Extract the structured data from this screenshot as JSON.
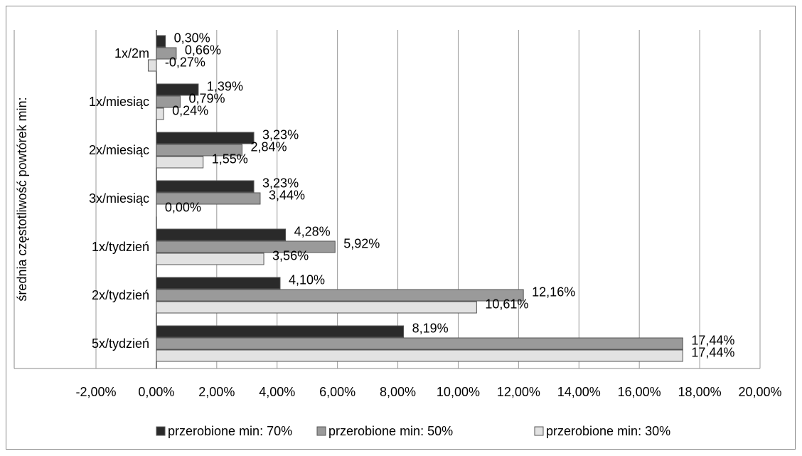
{
  "chart_data": {
    "type": "bar",
    "orientation": "horizontal",
    "y_axis_label": "średnia częstotliwość powtórek min:",
    "categories": [
      "1x/2m",
      "1x/miesiąc",
      "2x/miesiąc",
      "3x/miesiąc",
      "1x/tydzień",
      "2x/tydzień",
      "5x/tydzień"
    ],
    "series": [
      {
        "name": "przerobione min: 70%",
        "color": "#2a2a2a",
        "values": [
          0.3,
          1.39,
          3.23,
          3.23,
          4.28,
          4.1,
          8.19
        ],
        "value_labels": [
          "0,30%",
          "1,39%",
          "3,23%",
          "3,23%",
          "4,28%",
          "4,10%",
          "8,19%"
        ]
      },
      {
        "name": "przerobione min: 50%",
        "color": "#9a9a9a",
        "values": [
          0.66,
          0.79,
          2.84,
          3.44,
          5.92,
          12.16,
          17.44
        ],
        "value_labels": [
          "0,66%",
          "0,79%",
          "2,84%",
          "3,44%",
          "5,92%",
          "12,16%",
          "17,44%"
        ]
      },
      {
        "name": "przerobione min: 30%",
        "color": "#e2e2e2",
        "values": [
          -0.27,
          0.24,
          1.55,
          0.0,
          3.56,
          10.61,
          17.44
        ],
        "value_labels": [
          "-0,27%",
          "0,24%",
          "1,55%",
          "0,00%",
          "3,56%",
          "10,61%",
          "17,44%"
        ]
      }
    ],
    "xlim": [
      -2,
      20
    ],
    "xticks": [
      {
        "value": -2,
        "label": "-2,00%"
      },
      {
        "value": 0,
        "label": "0,00%"
      },
      {
        "value": 2,
        "label": "2,00%"
      },
      {
        "value": 4,
        "label": "4,00%"
      },
      {
        "value": 6,
        "label": "6,00%"
      },
      {
        "value": 8,
        "label": "8,00%"
      },
      {
        "value": 10,
        "label": "10,00%"
      },
      {
        "value": 12,
        "label": "12,00%"
      },
      {
        "value": 14,
        "label": "14,00%"
      },
      {
        "value": 16,
        "label": "16,00%"
      },
      {
        "value": 18,
        "label": "18,00%"
      },
      {
        "value": 20,
        "label": "20,00%"
      }
    ],
    "grid": true,
    "legend": "bottom"
  }
}
